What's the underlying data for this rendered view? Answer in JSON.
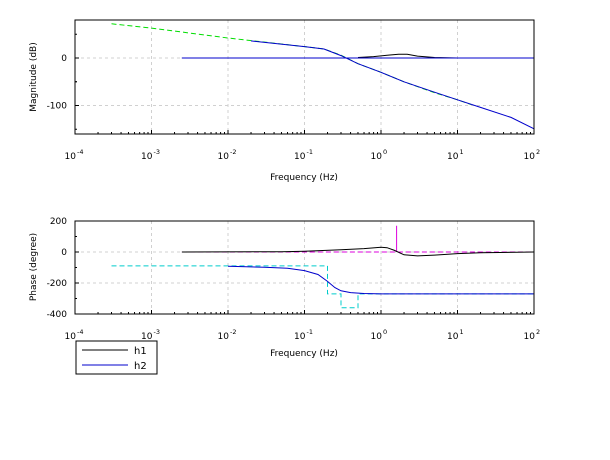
{
  "chart_data": [
    {
      "type": "line",
      "panel": "magnitude",
      "xscale": "log",
      "xlim": [
        0.0001,
        100
      ],
      "ylim": [
        -160,
        80
      ],
      "xlabel": "Frequency (Hz)",
      "ylabel": "Magnitude (dB)",
      "yticks": [
        0,
        -100
      ],
      "ytick_labels": [
        "0",
        "-100"
      ],
      "xticks": [
        {
          "base": "10",
          "exp": "-4",
          "value": 0.0001
        },
        {
          "base": "10",
          "exp": "-3",
          "value": 0.001
        },
        {
          "base": "10",
          "exp": "-2",
          "value": 0.01
        },
        {
          "base": "10",
          "exp": "-1",
          "value": 0.1
        },
        {
          "base": "10",
          "exp": "0",
          "value": 1
        },
        {
          "base": "10",
          "exp": "1",
          "value": 10
        },
        {
          "base": "10",
          "exp": "2",
          "value": 100
        }
      ],
      "grid": true,
      "series": [
        {
          "color": "#00dd00",
          "dash": true,
          "x": [
            0.0003,
            0.001,
            0.01,
            0.1,
            0.18,
            0.3,
            0.5,
            1,
            2,
            5,
            10,
            15
          ],
          "y": [
            72,
            63,
            42,
            24,
            19,
            6,
            -12,
            -30,
            -50,
            -73,
            -88,
            -98
          ]
        },
        {
          "color": "#000000",
          "dash": true,
          "x": [
            0.0025,
            0.1,
            0.5,
            1,
            5
          ],
          "y": [
            0,
            0,
            0,
            0,
            0
          ]
        },
        {
          "color": "#000000",
          "dash": false,
          "x": [
            0.5,
            0.8,
            1.2,
            1.7,
            2.2,
            3,
            5,
            10,
            100
          ],
          "y": [
            1,
            3,
            6,
            8,
            8,
            4,
            1,
            0,
            0
          ]
        },
        {
          "color": "#0000cc",
          "dash": false,
          "x": [
            0.0025,
            0.05,
            0.1,
            0.2,
            0.3,
            0.5,
            0.7,
            1,
            3,
            10,
            30,
            60,
            100
          ],
          "y": [
            0,
            0,
            0,
            0,
            0,
            0,
            0,
            0,
            0,
            0,
            0,
            0,
            0
          ]
        },
        {
          "color": "#0000cc",
          "dash": false,
          "x": [
            0.02,
            0.1,
            0.18,
            0.3,
            0.5,
            1,
            2,
            5,
            10,
            20,
            50,
            100
          ],
          "y": [
            36,
            24,
            19,
            5,
            -12,
            -30,
            -50,
            -72,
            -88,
            -104,
            -125,
            -149
          ]
        }
      ]
    },
    {
      "type": "line",
      "panel": "phase",
      "xscale": "log",
      "xlim": [
        0.0001,
        100
      ],
      "ylim": [
        -400,
        200
      ],
      "xlabel": "Frequency (Hz)",
      "ylabel": "Phase (degree)",
      "yticks": [
        200,
        0,
        -200,
        -400
      ],
      "ytick_labels": [
        "200",
        "0",
        "-200",
        "-400"
      ],
      "xticks": [
        {
          "base": "10",
          "exp": "-4",
          "value": 0.0001
        },
        {
          "base": "10",
          "exp": "-3",
          "value": 0.001
        },
        {
          "base": "10",
          "exp": "-2",
          "value": 0.01
        },
        {
          "base": "10",
          "exp": "-1",
          "value": 0.1
        },
        {
          "base": "10",
          "exp": "0",
          "value": 1
        },
        {
          "base": "10",
          "exp": "1",
          "value": 10
        },
        {
          "base": "10",
          "exp": "2",
          "value": 100
        }
      ],
      "grid": true,
      "series": [
        {
          "color": "#dd00dd",
          "dash": true,
          "x": [
            0.0025,
            0.1,
            1,
            1.6,
            10,
            100
          ],
          "y": [
            0,
            0,
            0,
            0,
            0,
            0
          ]
        },
        {
          "color": "#dd00dd",
          "dash": false,
          "x": [
            1.6,
            1.6,
            1.6
          ],
          "y": [
            0,
            170,
            0
          ]
        },
        {
          "color": "#00cccc",
          "dash": true,
          "x": [
            0.0003,
            0.01,
            0.15,
            0.2,
            0.2,
            0.26,
            0.3,
            0.3,
            0.45,
            0.5,
            0.5,
            1,
            10,
            100
          ],
          "y": [
            -90,
            -90,
            -90,
            -90,
            -270,
            -270,
            -270,
            -360,
            -360,
            -360,
            -270,
            -270,
            -270,
            -270
          ]
        },
        {
          "color": "#000000",
          "dash": false,
          "x": [
            0.0025,
            0.05,
            0.1,
            0.3,
            0.6,
            1,
            1.2,
            1.5,
            2,
            3,
            5,
            10,
            20,
            100
          ],
          "y": [
            0,
            2,
            5,
            15,
            22,
            30,
            28,
            10,
            -18,
            -25,
            -20,
            -10,
            -5,
            0
          ]
        },
        {
          "color": "#0000cc",
          "dash": false,
          "x": [
            0.01,
            0.03,
            0.06,
            0.1,
            0.15,
            0.2,
            0.25,
            0.3,
            0.4,
            0.6,
            1,
            10,
            100
          ],
          "y": [
            -92,
            -98,
            -105,
            -120,
            -145,
            -190,
            -230,
            -250,
            -262,
            -268,
            -270,
            -270,
            -270
          ]
        }
      ]
    }
  ],
  "legend": [
    {
      "label": "h1",
      "color": "#000000"
    },
    {
      "label": "h2",
      "color": "#0000cc"
    }
  ]
}
